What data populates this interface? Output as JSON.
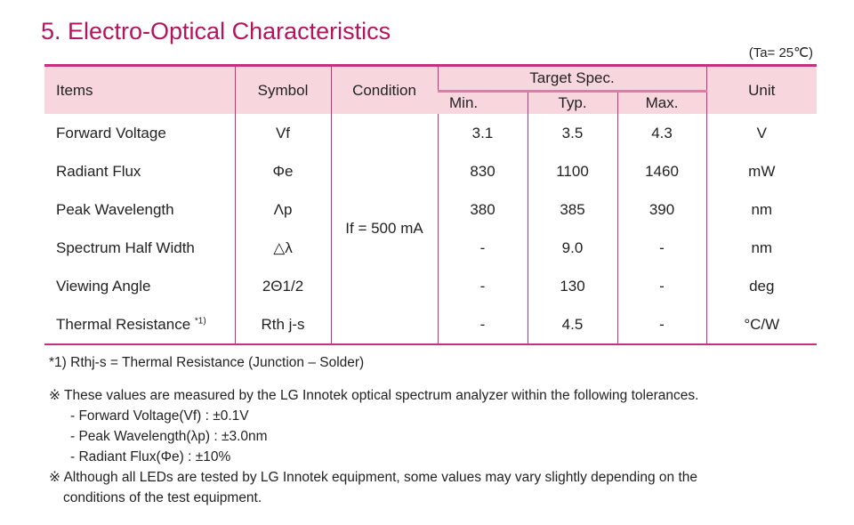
{
  "title": "5. Electro-Optical Characteristics",
  "ambient": "(Ta= 25℃)",
  "headers": {
    "items": "Items",
    "symbol": "Symbol",
    "condition": "Condition",
    "target": "Target Spec.",
    "min": "Min.",
    "typ": "Typ.",
    "max": "Max.",
    "unit": "Unit"
  },
  "condition": "If = 500 mA",
  "rows": [
    {
      "item": "Forward Voltage",
      "sup": "",
      "symbol": "Vf",
      "min": "3.1",
      "typ": "3.5",
      "max": "4.3",
      "unit": "V"
    },
    {
      "item": "Radiant Flux",
      "sup": "",
      "symbol": "Φe",
      "min": "830",
      "typ": "1100",
      "max": "1460",
      "unit": "mW"
    },
    {
      "item": "Peak Wavelength",
      "sup": "",
      "symbol": "Λp",
      "min": "380",
      "typ": "385",
      "max": "390",
      "unit": "nm"
    },
    {
      "item": "Spectrum Half Width",
      "sup": "",
      "symbol": "△λ",
      "min": "-",
      "typ": "9.0",
      "max": "-",
      "unit": "nm"
    },
    {
      "item": "Viewing Angle",
      "sup": "",
      "symbol": "2Θ1/2",
      "min": "-",
      "typ": "130",
      "max": "-",
      "unit": "deg"
    },
    {
      "item": "Thermal Resistance ",
      "sup": "*1)",
      "symbol": "Rth j-s",
      "min": "-",
      "typ": "4.5",
      "max": "-",
      "unit": "°C/W"
    }
  ],
  "notes": {
    "footnote": "*1) Rthj-s = Thermal Resistance (Junction – Solder)",
    "measure": "※ These values are measured by the LG Innotek optical spectrum analyzer within the following tolerances.",
    "tol": [
      "- Forward Voltage(Vf) : ±0.1V",
      "- Peak Wavelength(λp) : ±3.0nm",
      "- Radiant Flux(Φe) : ±10%"
    ],
    "vary1": "※ Although all LEDs are tested by LG Innotek equipment, some values may vary slightly depending on the",
    "vary2": "conditions of the test equipment."
  }
}
